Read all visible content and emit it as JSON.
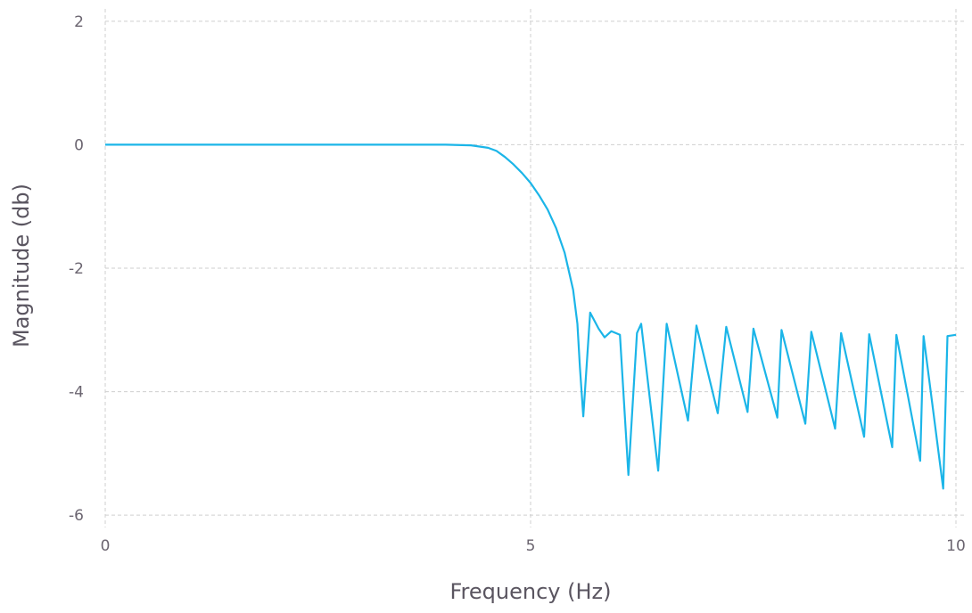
{
  "chart_data": {
    "type": "line",
    "title": "",
    "xlabel": "Frequency (Hz)",
    "ylabel": "Magnitude (db)",
    "xlim": [
      0,
      10
    ],
    "ylim": [
      -6.2,
      2.2
    ],
    "xticks": [
      0,
      5,
      10
    ],
    "xtick_labels": [
      "0",
      "5",
      "10"
    ],
    "yticks": [
      2,
      0,
      -2,
      -4,
      -6
    ],
    "ytick_labels": [
      "2",
      "0",
      "-2",
      "-4",
      "-6"
    ],
    "grid": true,
    "legend": "none",
    "series_color": "#1bb5e8",
    "series": [
      {
        "x": [
          0,
          1,
          2,
          3,
          4,
          4.3,
          4.5,
          4.6,
          4.7,
          4.8,
          4.9,
          5.0,
          5.1,
          5.2,
          5.3,
          5.4,
          5.5,
          5.55,
          5.58,
          5.62,
          5.7,
          5.8,
          5.87,
          5.95,
          6.05,
          6.15,
          6.25,
          6.3,
          6.5,
          6.6,
          6.85,
          6.95,
          7.2,
          7.3,
          7.55,
          7.62,
          7.9,
          7.95,
          8.23,
          8.3,
          8.58,
          8.65,
          8.92,
          8.98,
          9.25,
          9.3,
          9.58,
          9.62,
          9.85,
          9.9,
          10.0
        ],
        "y": [
          0,
          0,
          0,
          0,
          0,
          -0.01,
          -0.05,
          -0.1,
          -0.2,
          -0.32,
          -0.46,
          -0.62,
          -0.82,
          -1.05,
          -1.35,
          -1.75,
          -2.35,
          -2.9,
          -3.6,
          -4.4,
          -2.72,
          -2.98,
          -3.12,
          -3.02,
          -3.08,
          -5.35,
          -3.05,
          -2.9,
          -5.28,
          -2.9,
          -4.47,
          -2.93,
          -4.35,
          -2.95,
          -4.33,
          -2.98,
          -4.42,
          -3.0,
          -4.52,
          -3.03,
          -4.6,
          -3.05,
          -4.73,
          -3.07,
          -4.9,
          -3.08,
          -5.12,
          -3.1,
          -5.57,
          -3.1,
          -3.08
        ]
      }
    ]
  }
}
